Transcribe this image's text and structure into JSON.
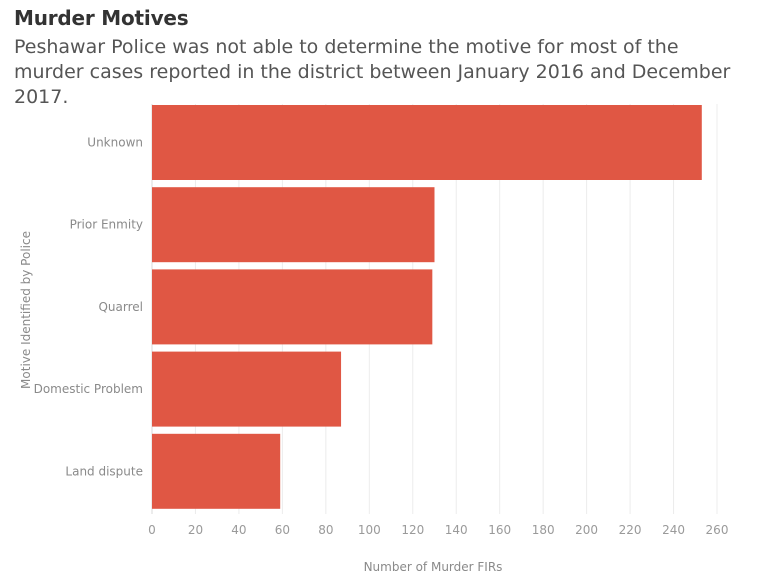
{
  "chart_data": {
    "type": "bar",
    "orientation": "horizontal",
    "title": "Murder Motives",
    "subtitle": "Peshawar Police was not able to determine the motive for most of the murder cases reported in the district between January 2016 and December 2017.",
    "categories": [
      "Unknown",
      "Prior Enmity",
      "Quarrel",
      "Domestic Problem",
      "Land dispute"
    ],
    "values": [
      253,
      130,
      129,
      87,
      59
    ],
    "xlabel": "Number of Murder FIRs",
    "ylabel": "Motive Identified by Police",
    "xlim": [
      0,
      260
    ],
    "xticks": [
      "0",
      "20",
      "40",
      "60",
      "80",
      "100",
      "120",
      "140",
      "160",
      "180",
      "200",
      "220",
      "240",
      "260"
    ],
    "grid": true,
    "bar_color": "#e05744"
  }
}
